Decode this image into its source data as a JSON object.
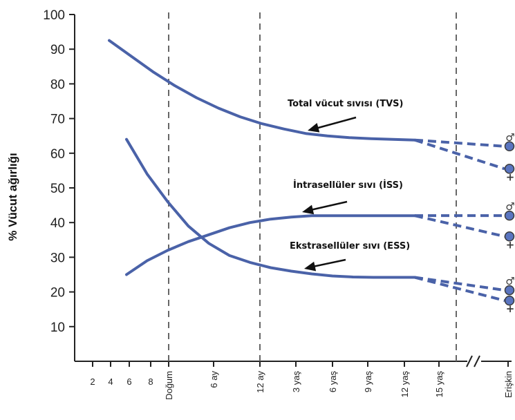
{
  "chart_data": {
    "type": "line",
    "ylabel": "% Vücut ağırlığı",
    "xlabel": "",
    "ylim": [
      0,
      100
    ],
    "yticks": [
      10,
      20,
      30,
      40,
      50,
      60,
      70,
      80,
      90,
      100
    ],
    "xticks": [
      "2",
      "4",
      "6",
      "8",
      "Doğum",
      "6 ay",
      "12 ay",
      "3 yaş",
      "6 yaş",
      "9 yaş",
      "12 yaş",
      "15 yaş",
      "Erişkin"
    ],
    "series": [
      {
        "name": "Total vücut sıvısı (TVS)",
        "values": [
          92.5,
          88,
          83.5,
          79.5,
          76,
          73,
          70.5,
          68.5,
          67,
          65.7,
          65,
          64.5,
          64.2,
          64,
          63.8
        ]
      },
      {
        "name": "İntrasellüler sıvı (İSS)",
        "values": [
          25,
          29,
          32,
          34.5,
          36.5,
          38.5,
          40,
          41,
          41.6,
          42,
          42,
          42,
          42,
          42,
          42
        ]
      },
      {
        "name": "Ekstrasellüler sıvı (ESS)",
        "values": [
          64,
          54,
          46,
          39,
          34,
          30.5,
          28.5,
          27,
          26,
          25.2,
          24.6,
          24.3,
          24.2,
          24.2,
          24.2
        ]
      }
    ],
    "adult_values": {
      "TVS": {
        "male": 62,
        "female": 55.5
      },
      "ISS": {
        "male": 42,
        "female": 36
      },
      "ESS": {
        "male": 20.5,
        "female": 17.5
      }
    },
    "annotations": [
      "Total vücut sıvısı (TVS)",
      "İntrasellüler sıvı (İSS)",
      "Ekstrasellüler sıvı (ESS)"
    ],
    "grid": false,
    "colors": {
      "line": "#4a62a8",
      "marker": "#5a75c0",
      "axis": "#222222",
      "dash": "#666666",
      "arrow": "#111111"
    }
  },
  "symbols": {
    "male": "♂",
    "female": "+"
  }
}
